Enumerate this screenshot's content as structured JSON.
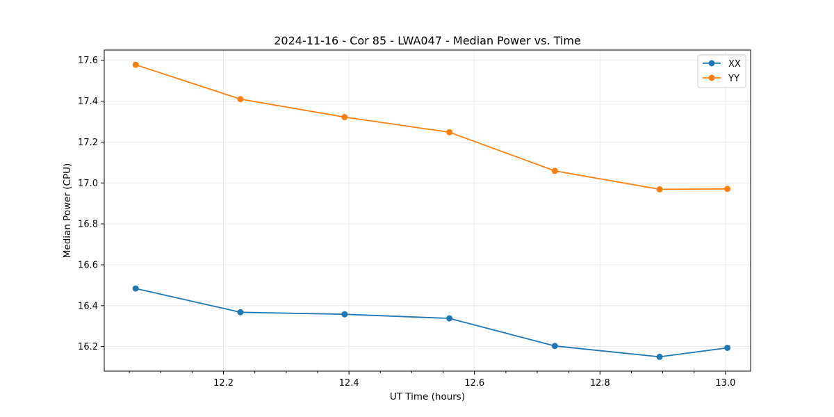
{
  "chart_data": {
    "type": "line",
    "title": "2024-11-16 - Cor 85 - LWA047 - Median Power vs. Time",
    "xlabel": "UT Time (hours)",
    "ylabel": "Median Power (CPU)",
    "xlim": [
      12.01,
      13.04
    ],
    "ylim": [
      16.08,
      17.65
    ],
    "xticks": [
      12.2,
      12.4,
      12.6,
      12.8,
      13.0
    ],
    "xtick_labels": [
      "12.2",
      "12.4",
      "12.6",
      "12.8",
      "13.0"
    ],
    "xminor_ticks": [
      12.05,
      12.1,
      12.15,
      12.25,
      12.3,
      12.35,
      12.45,
      12.5,
      12.55,
      12.65,
      12.7,
      12.75,
      12.85,
      12.9,
      12.95
    ],
    "yticks": [
      16.2,
      16.4,
      16.6,
      16.8,
      17.0,
      17.2,
      17.4,
      17.6
    ],
    "ytick_labels": [
      "16.2",
      "16.4",
      "16.6",
      "16.8",
      "17.0",
      "17.2",
      "17.4",
      "17.6"
    ],
    "grid": true,
    "legend_position": "top-right",
    "x": [
      12.06,
      12.227,
      12.393,
      12.56,
      12.728,
      12.895,
      13.003
    ],
    "series": [
      {
        "name": "XX",
        "color": "#1f77b4",
        "marker": "circle",
        "values": [
          16.484,
          16.368,
          16.358,
          16.338,
          16.203,
          16.15,
          16.194
        ]
      },
      {
        "name": "YY",
        "color": "#ff7f0e",
        "marker": "circle",
        "values": [
          17.578,
          17.41,
          17.322,
          17.248,
          17.059,
          16.969,
          16.971
        ]
      }
    ]
  }
}
